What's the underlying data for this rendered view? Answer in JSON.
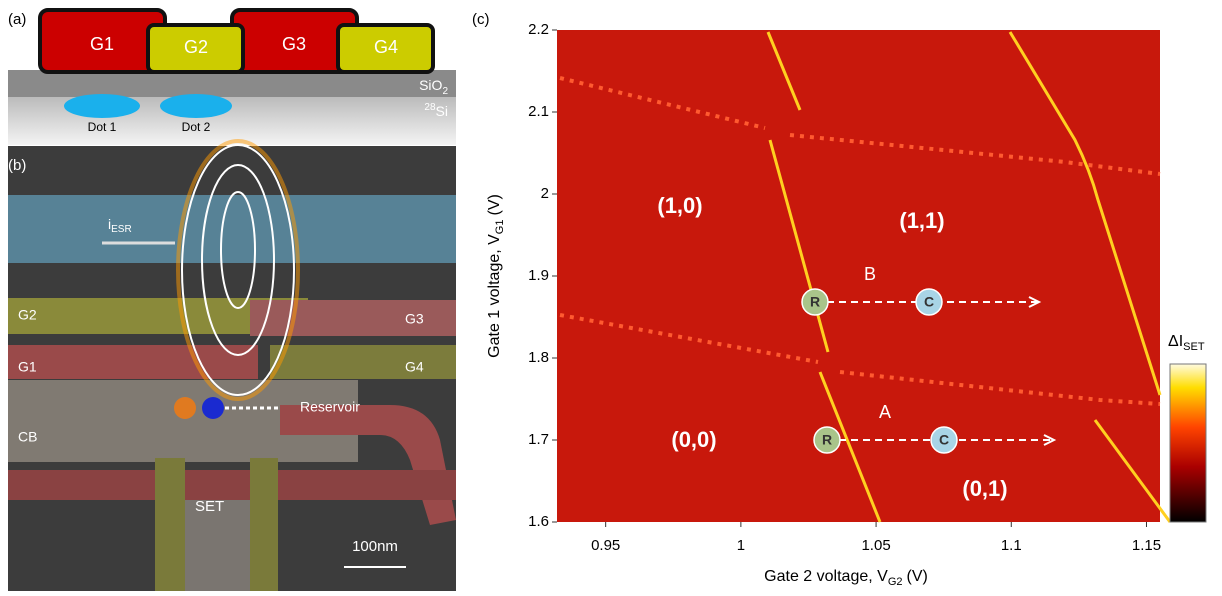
{
  "panel_labels": [
    "(a)",
    "(b)",
    "(c)"
  ],
  "panel_a": {
    "gates": [
      "G1",
      "G2",
      "G3",
      "G4"
    ],
    "oxide": "SiO",
    "oxide_sub": "2",
    "substrate_sup": "28",
    "substrate": "Si",
    "dots": [
      "Dot 1",
      "Dot 2"
    ]
  },
  "panel_b": {
    "labels": [
      "G2",
      "G3",
      "G1",
      "G4",
      "CB",
      "Reservoir",
      "SET"
    ],
    "current": "i",
    "current_sub": "ESR",
    "scale_bar": "100nm"
  },
  "chart_data": {
    "type": "heatmap",
    "x_label": "Gate 2 voltage, V",
    "x_label_sub": "G2",
    "x_label_unit": "(V)",
    "y_label": "Gate 1 voltage, V",
    "y_label_sub": "G1",
    "y_label_unit": "(V)",
    "colorbar_label": "ΔI",
    "colorbar_sub": "SET",
    "xlim": [
      0.932,
      1.155
    ],
    "xticks": [
      0.95,
      1,
      1.05,
      1.1,
      1.15
    ],
    "ylim": [
      1.6,
      2.2
    ],
    "yticks": [
      1.6,
      1.7,
      1.8,
      1.9,
      2,
      2.1,
      2.2
    ],
    "annotations": [
      "(1,0)",
      "(1,1)",
      "(0,0)",
      "(0,1)",
      "B",
      "A"
    ],
    "markers": [
      "R",
      "C",
      "R",
      "C"
    ]
  }
}
